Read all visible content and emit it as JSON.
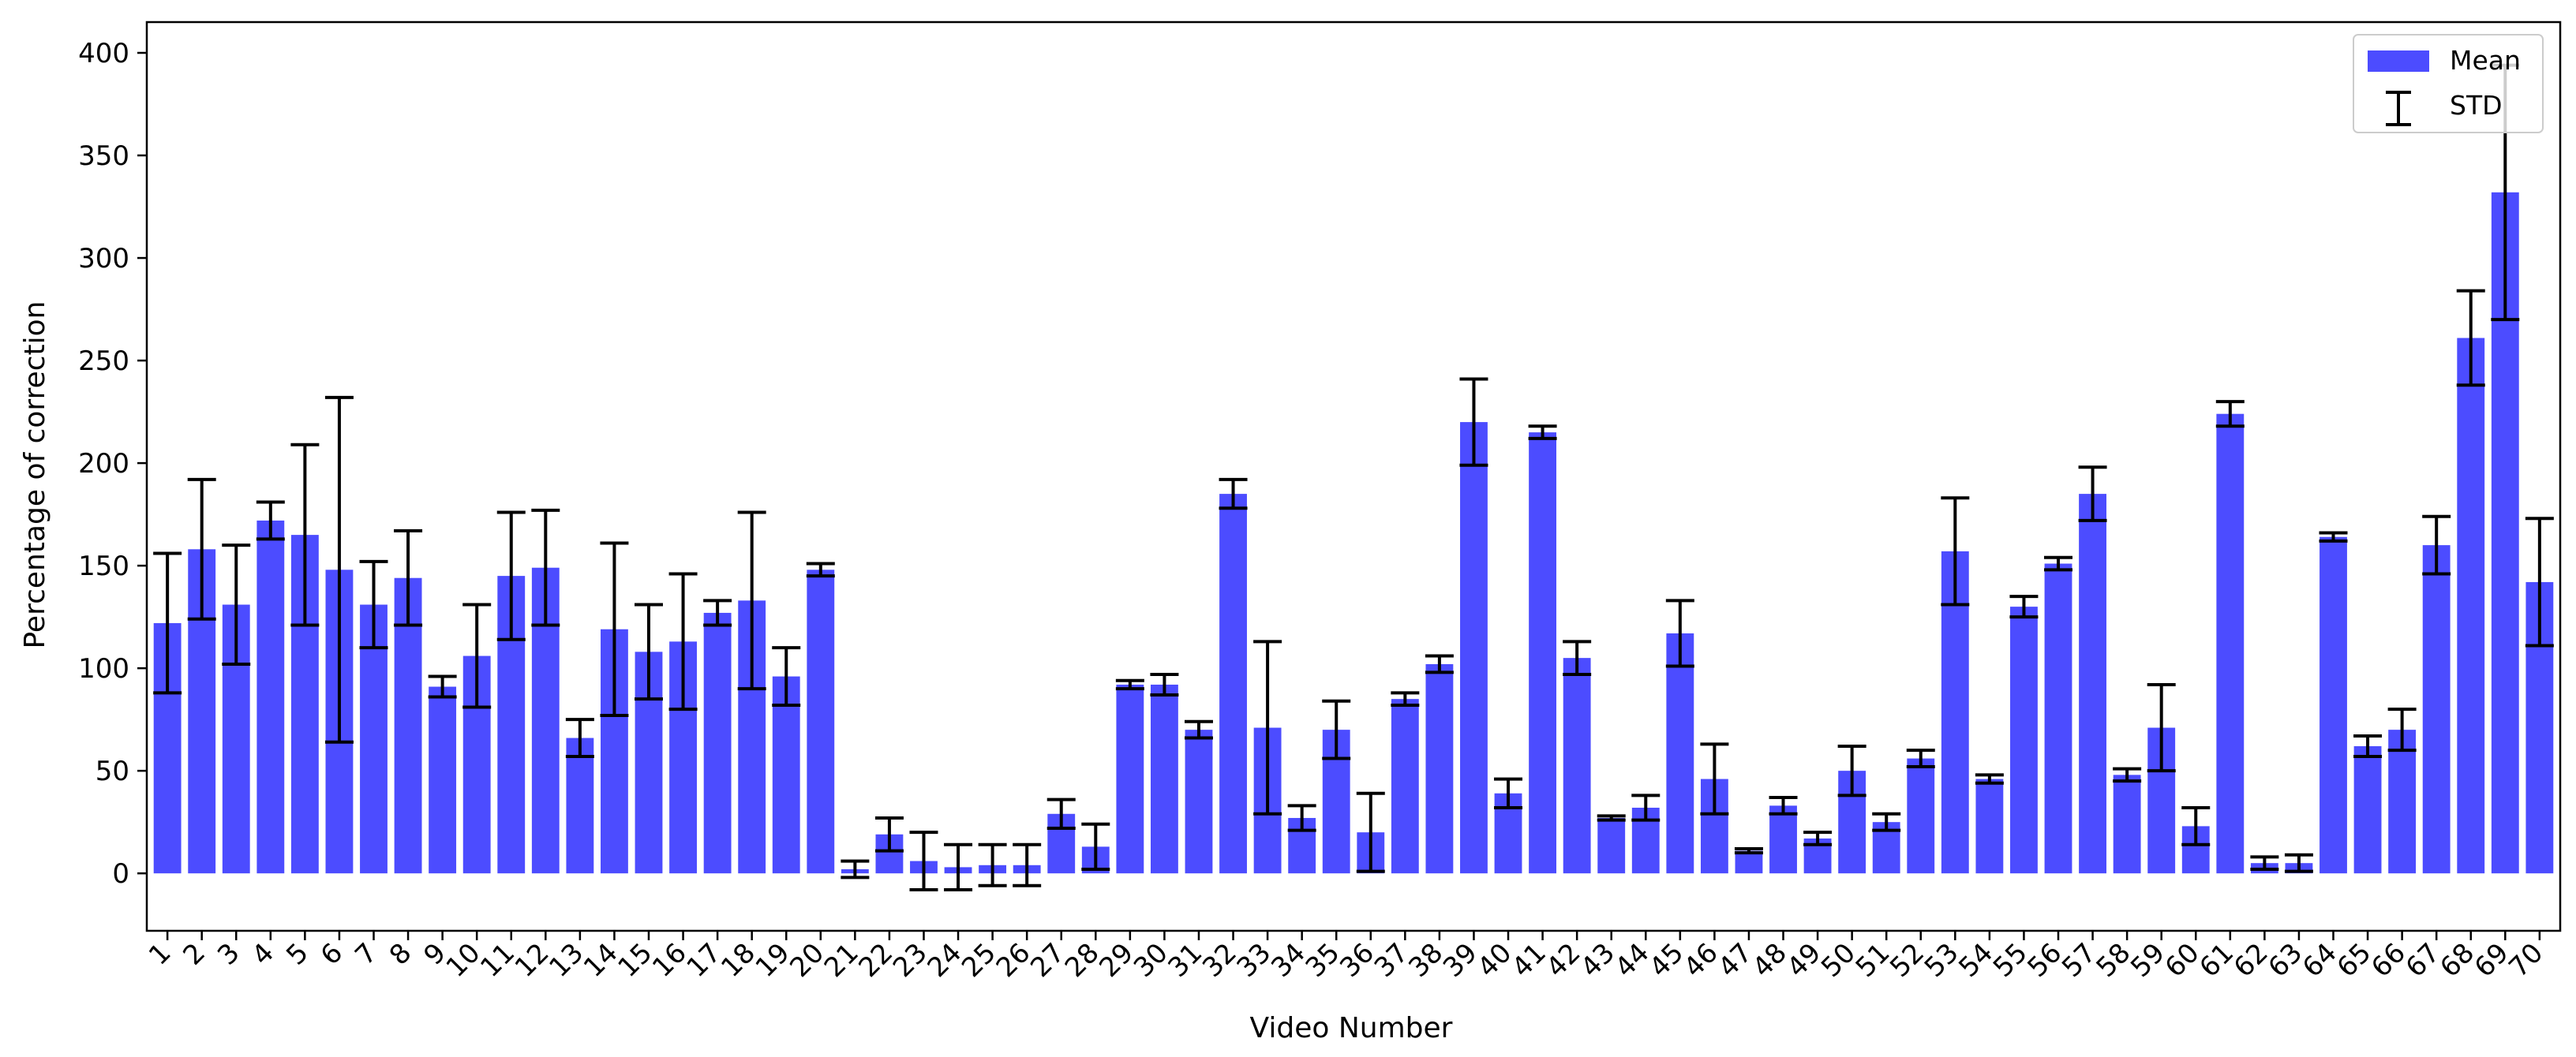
{
  "chart_data": {
    "type": "bar",
    "xlabel": "Video Number",
    "ylabel": "Percentage of correction",
    "ylim": [
      -28,
      415
    ],
    "yticks": [
      0,
      50,
      100,
      150,
      200,
      250,
      300,
      350,
      400
    ],
    "legend": {
      "placement": "top-right",
      "entries": [
        "Mean",
        "STD"
      ]
    },
    "colors": {
      "bar": "#4c4cff",
      "error": "#000000"
    },
    "categories": [
      "1",
      "2",
      "3",
      "4",
      "5",
      "6",
      "7",
      "8",
      "9",
      "10",
      "11",
      "12",
      "13",
      "14",
      "15",
      "16",
      "17",
      "18",
      "19",
      "20",
      "21",
      "22",
      "23",
      "24",
      "25",
      "26",
      "27",
      "28",
      "29",
      "30",
      "31",
      "32",
      "33",
      "34",
      "35",
      "36",
      "37",
      "38",
      "39",
      "40",
      "41",
      "42",
      "43",
      "44",
      "45",
      "46",
      "47",
      "48",
      "49",
      "50",
      "51",
      "52",
      "53",
      "54",
      "55",
      "56",
      "57",
      "58",
      "59",
      "60",
      "61",
      "62",
      "63",
      "64",
      "65",
      "66",
      "67",
      "68",
      "69",
      "70"
    ],
    "series": [
      {
        "name": "Mean",
        "values": [
          122,
          158,
          131,
          172,
          165,
          148,
          131,
          144,
          91,
          106,
          145,
          149,
          66,
          119,
          108,
          113,
          127,
          133,
          96,
          148,
          2,
          19,
          6,
          3,
          4,
          4,
          29,
          13,
          92,
          92,
          70,
          185,
          71,
          27,
          70,
          20,
          85,
          102,
          220,
          39,
          215,
          105,
          27,
          32,
          117,
          46,
          11,
          33,
          17,
          50,
          25,
          56,
          157,
          46,
          130,
          151,
          185,
          48,
          71,
          23,
          224,
          5,
          5,
          164,
          62,
          70,
          160,
          261,
          332,
          142
        ],
        "std": [
          34,
          34,
          29,
          9,
          44,
          84,
          21,
          23,
          5,
          25,
          31,
          28,
          9,
          42,
          23,
          33,
          6,
          43,
          14,
          3,
          4,
          8,
          14,
          11,
          10,
          10,
          7,
          11,
          2,
          5,
          4,
          7,
          42,
          6,
          14,
          19,
          3,
          4,
          21,
          7,
          3,
          8,
          1,
          6,
          16,
          17,
          1,
          4,
          3,
          12,
          4,
          4,
          26,
          2,
          5,
          3,
          13,
          3,
          21,
          9,
          6,
          3,
          4,
          2,
          5,
          10,
          14,
          23,
          62,
          31
        ]
      }
    ]
  }
}
